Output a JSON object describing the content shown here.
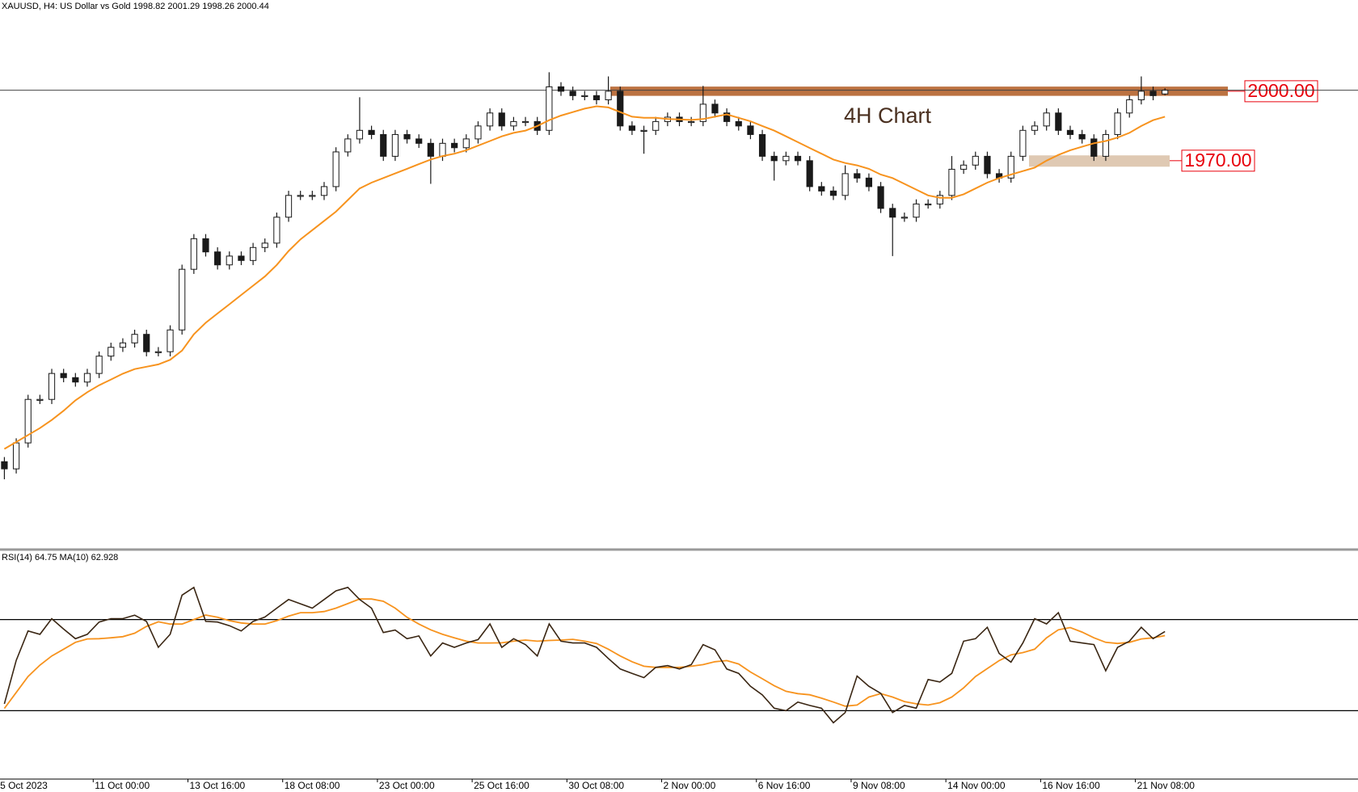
{
  "chart_data": [
    {
      "type": "candlestick",
      "title": "XAUUSD, H4:  US Dollar vs Gold  1998.82 2001.29 1998.26 2000.44",
      "annotation": "4H Chart",
      "up_color": "#ffffff",
      "down_color": "#1a1a1a",
      "wick_color": "#1a1a1a",
      "open": [
        1840,
        1836.9,
        1848.1,
        1866.9,
        1866.9,
        1878.1,
        1876.3,
        1874.4,
        1878.1,
        1885.6,
        1889.4,
        1891.3,
        1895,
        1887.5,
        1887.5,
        1896.9,
        1923.1,
        1936.3,
        1930.6,
        1925,
        1928.8,
        1926.9,
        1932.5,
        1934.4,
        1945.6,
        1955,
        1955,
        1955,
        1958.8,
        1973.8,
        1979.4,
        1983.1,
        1981.3,
        1971.9,
        1981.3,
        1979.4,
        1977.5,
        1971.9,
        1977.5,
        1975.6,
        1979.4,
        1985,
        1990.6,
        1985,
        1986.9,
        1986.9,
        1983.1,
        2001.9,
        2000,
        1998.1,
        1998.1,
        1996.3,
        2000,
        1985,
        1983.1,
        1983.1,
        1986.9,
        1988.8,
        1986.9,
        1986.9,
        1994.4,
        1990.6,
        1986.9,
        1985,
        1981.3,
        1971.9,
        1970,
        1971.9,
        1970,
        1958.8,
        1956.9,
        1955,
        1964.4,
        1962.5,
        1958.8,
        1949.4,
        1945.6,
        1945.6,
        1951.3,
        1951.3,
        1955,
        1966.3,
        1968.1,
        1971.9,
        1964.4,
        1962.5,
        1971.9,
        1983.1,
        1985,
        1990.6,
        1983.1,
        1981.3,
        1979.4,
        1971.9,
        1981.3,
        1990.6,
        1996.3,
        2000,
        1998.82
      ],
      "high": [
        1842,
        1850.1,
        1868.9,
        1868.9,
        1880.1,
        1880.1,
        1878.3,
        1880.1,
        1887.6,
        1891.4,
        1893.3,
        1897,
        1897,
        1889.5,
        1898.9,
        1925.1,
        1938.3,
        1938.3,
        1932.6,
        1930.8,
        1930.8,
        1934.5,
        1936.4,
        1947.6,
        1957,
        1957,
        1957,
        1960.8,
        1975.8,
        1981.4,
        1997.4,
        1985.1,
        1983.3,
        1983.3,
        1983.3,
        1981.4,
        1979.5,
        1979.5,
        1979.5,
        1981.4,
        1987,
        1992.6,
        1992.6,
        1988.9,
        1988.9,
        1988.9,
        2008.2,
        2003.9,
        2002,
        2000.1,
        2000.1,
        2006.4,
        2002,
        1987,
        1985.1,
        1988.9,
        1990.8,
        1990.8,
        1988.9,
        2002.3,
        1996.4,
        1992.6,
        1988.9,
        1987,
        1983.3,
        1973.9,
        1973.9,
        1973.9,
        1972,
        1960.8,
        1958.9,
        1968,
        1966.4,
        1964.5,
        1960.8,
        1951.4,
        1947.6,
        1953.3,
        1953.3,
        1957,
        1972,
        1970.1,
        1973.9,
        1973.9,
        1966.4,
        1973.9,
        1985.1,
        1987,
        1992.6,
        1992.6,
        1985.1,
        1983.3,
        1981.4,
        1983.3,
        1992.6,
        1998.3,
        2006.4,
        2002,
        2001.29
      ],
      "low": [
        1832.4,
        1834.9,
        1846.1,
        1864.9,
        1864.9,
        1874.3,
        1872.4,
        1872.4,
        1876.1,
        1883.6,
        1887.4,
        1889.3,
        1885.5,
        1885.5,
        1885.5,
        1894.9,
        1921.1,
        1928.6,
        1923,
        1923,
        1924.9,
        1924.9,
        1930.5,
        1932.4,
        1943.6,
        1953,
        1953,
        1953,
        1956.8,
        1971.8,
        1977.4,
        1979.3,
        1969.9,
        1969.9,
        1977.4,
        1975.5,
        1960,
        1969.9,
        1973.6,
        1973.6,
        1977.4,
        1983,
        1983,
        1983,
        1984.9,
        1981.1,
        1981.1,
        1998,
        1996.1,
        1996.1,
        1994.3,
        1994.3,
        1983,
        1981.1,
        1973,
        1981.1,
        1984.9,
        1984.9,
        1984.9,
        1984.9,
        1988.6,
        1984.9,
        1983,
        1979.3,
        1969.9,
        1961.4,
        1968,
        1968,
        1956.8,
        1954.9,
        1953,
        1953,
        1960.5,
        1956.8,
        1947.4,
        1928.8,
        1943.6,
        1943.6,
        1949.3,
        1949.3,
        1953,
        1964.3,
        1966.1,
        1962.4,
        1960.5,
        1960.5,
        1969.9,
        1981.1,
        1983,
        1981.1,
        1979.3,
        1977.4,
        1969.9,
        1969.9,
        1979.3,
        1988.6,
        1994.3,
        1996.1,
        1998.26
      ],
      "close": [
        1836.9,
        1848.1,
        1866.9,
        1866.9,
        1878.1,
        1876.3,
        1874.4,
        1878.1,
        1885.6,
        1889.4,
        1891.3,
        1895,
        1887.5,
        1887.5,
        1896.9,
        1923.1,
        1936.3,
        1930.6,
        1925,
        1928.8,
        1926.9,
        1932.5,
        1934.4,
        1945.6,
        1955,
        1955,
        1955,
        1958.8,
        1973.8,
        1979.4,
        1983.1,
        1981.3,
        1971.9,
        1981.3,
        1979.4,
        1977.5,
        1971.9,
        1977.5,
        1975.6,
        1979.4,
        1985,
        1990.6,
        1985,
        1986.9,
        1986.9,
        1983.1,
        2001.9,
        2000,
        1998.1,
        1998.1,
        1996.3,
        2000,
        1985,
        1983.1,
        1983.1,
        1986.9,
        1988.8,
        1986.9,
        1986.9,
        1994.4,
        1990.6,
        1986.9,
        1985,
        1981.3,
        1971.9,
        1970,
        1971.9,
        1970,
        1958.8,
        1956.9,
        1955,
        1964.4,
        1962.5,
        1958.8,
        1949.4,
        1945.6,
        1945.6,
        1951.3,
        1951.3,
        1955,
        1966.3,
        1968.1,
        1971.9,
        1964.4,
        1962.5,
        1971.9,
        1983.1,
        1985,
        1990.6,
        1983.1,
        1981.3,
        1979.4,
        1971.9,
        1981.3,
        1990.6,
        1996.3,
        2000,
        1998.1,
        2000.44
      ],
      "ma": {
        "color": "#f7931e",
        "values": [
          1845.5,
          1848.5,
          1851.5,
          1854.5,
          1858,
          1862,
          1866.5,
          1870,
          1873,
          1875.5,
          1878,
          1880,
          1881,
          1882,
          1884,
          1888,
          1895,
          1900,
          1904,
          1908,
          1912,
          1916,
          1920,
          1925,
          1931,
          1936,
          1940,
          1944,
          1948,
          1953,
          1958,
          1960.5,
          1962.5,
          1964.5,
          1966.5,
          1968.5,
          1970.5,
          1972,
          1973,
          1974.5,
          1976.5,
          1978.5,
          1980.5,
          1982,
          1983,
          1985,
          1987.5,
          1989.5,
          1991,
          1992.5,
          1993.5,
          1993,
          1991,
          1989,
          1988.5,
          1988.5,
          1988,
          1987.8,
          1987.6,
          1988,
          1989,
          1990,
          1988.5,
          1987,
          1985,
          1983,
          1980.5,
          1978,
          1975.5,
          1973,
          1970.5,
          1969,
          1968,
          1966.5,
          1964,
          1962.5,
          1960,
          1957.5,
          1955,
          1954,
          1954,
          1955.5,
          1958,
          1960.5,
          1962.5,
          1964,
          1965.5,
          1967,
          1970,
          1972.5,
          1974.5,
          1976,
          1977.5,
          1978.5,
          1980,
          1982,
          1985,
          1987.5,
          1989
        ]
      },
      "bid_line": 2000.44,
      "zones": [
        {
          "low": 1998,
          "high": 2002,
          "color": "#b5632c",
          "label": {
            "value": 2000,
            "label": "2000.00"
          }
        },
        {
          "low": 1967.4,
          "high": 1972.3,
          "color": "#d9c0a6",
          "label": {
            "value": 1970,
            "label": "1970.00"
          }
        }
      ],
      "label_color": "#e8000b",
      "ylim": [
        1802.4,
        2039.4
      ],
      "xlim": [
        -0.37,
        114.3
      ]
    },
    {
      "type": "line",
      "title": "RSI(14) 64.75 MA(10) 62.928",
      "series": [
        {
          "color": "#3a2613",
          "values": [
            33,
            52.1,
            65,
            63.5,
            70.4,
            65.8,
            61.6,
            63.5,
            68.9,
            70.4,
            70.4,
            71.9,
            69.2,
            57.8,
            63.5,
            80.7,
            84.1,
            69.2,
            68.9,
            67.3,
            65,
            69.2,
            71.1,
            75,
            78.8,
            76.9,
            75,
            78.8,
            82.6,
            84.1,
            78.8,
            75,
            64.3,
            65.4,
            61.6,
            62.8,
            54,
            59.7,
            57.8,
            59.7,
            61.2,
            68.1,
            57.8,
            61.6,
            59,
            54,
            68.1,
            60.5,
            59.7,
            59.7,
            57.8,
            52.9,
            48.3,
            46.4,
            44.5,
            49,
            49.8,
            48.3,
            50.2,
            59,
            56.7,
            48.3,
            46.4,
            40.7,
            36.9,
            31.1,
            30,
            33.8,
            32.3,
            31.1,
            24.7,
            29.2,
            45.2,
            40.7,
            37.6,
            29.2,
            32.3,
            31.1,
            43.7,
            42.6,
            46.4,
            60.5,
            61.6,
            66.6,
            55.1,
            51.3,
            59.7,
            70.4,
            68.1,
            73,
            60.5,
            59.7,
            59,
            47.5,
            57.8,
            60.5,
            66.6,
            61.6,
            64.75
          ]
        },
        {
          "color": "#f7931e",
          "values": [
            31,
            38,
            45,
            50,
            54,
            57,
            60,
            61.5,
            61.6,
            62,
            62.5,
            64,
            67,
            69,
            68,
            68,
            70,
            72,
            71,
            69.5,
            68.5,
            68,
            68,
            69.5,
            71.5,
            73,
            73,
            73.5,
            75,
            77,
            79,
            79,
            78,
            75,
            71,
            68,
            65.5,
            63.5,
            62,
            60.5,
            59.7,
            59.7,
            59.8,
            60.5,
            61,
            60.5,
            60.8,
            61,
            61.3,
            60.5,
            59.5,
            57,
            54,
            51.5,
            49.5,
            49,
            49,
            49,
            49.5,
            50.2,
            51.5,
            52,
            50.5,
            47,
            44,
            41,
            38.5,
            37.5,
            37,
            35.5,
            33.8,
            32,
            32.5,
            36,
            37.5,
            36,
            34,
            33,
            32.5,
            33.5,
            36,
            40,
            45,
            48.5,
            52,
            54.5,
            55.5,
            57,
            62,
            65.5,
            66.5,
            64.5,
            62,
            60,
            59.5,
            60,
            61.5,
            62,
            62.928
          ]
        }
      ],
      "levels": [
        30,
        70
      ],
      "ylim": [
        0,
        100
      ],
      "xlim": [
        -0.37,
        114.3
      ],
      "xticks": [
        {
          "value": -0.5,
          "label": "5 Oct 2023"
        },
        {
          "value": 7.5,
          "label": "11 Oct 00:00"
        },
        {
          "value": 15.5,
          "label": "13 Oct 16:00"
        },
        {
          "value": 23.5,
          "label": "18 Oct 08:00"
        },
        {
          "value": 31.5,
          "label": "23 Oct 00:00"
        },
        {
          "value": 39.5,
          "label": "25 Oct 16:00"
        },
        {
          "value": 47.5,
          "label": "30 Oct 08:00"
        },
        {
          "value": 55.5,
          "label": "2 Nov 00:00"
        },
        {
          "value": 63.5,
          "label": "6 Nov 16:00"
        },
        {
          "value": 71.5,
          "label": "9 Nov 08:00"
        },
        {
          "value": 79.5,
          "label": "14 Nov 00:00"
        },
        {
          "value": 87.5,
          "label": "16 Nov 16:00"
        },
        {
          "value": 95.5,
          "label": "21 Nov 08:00"
        }
      ]
    }
  ]
}
